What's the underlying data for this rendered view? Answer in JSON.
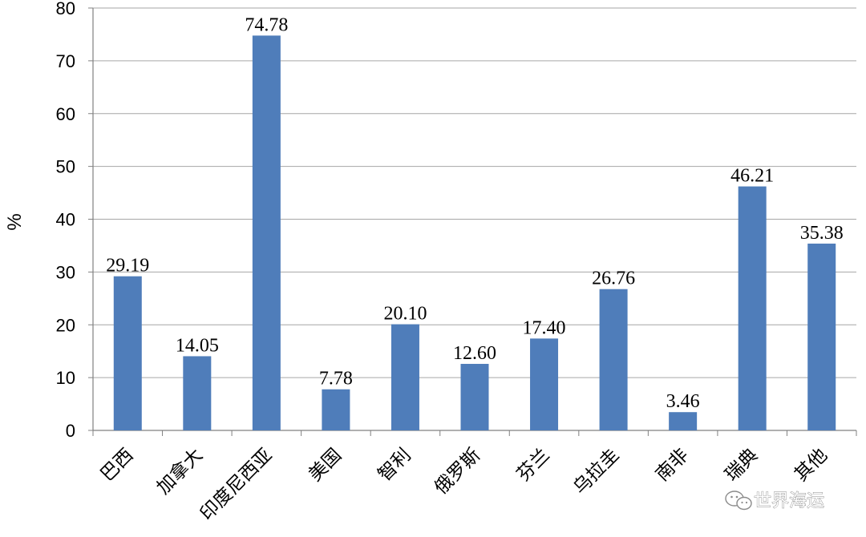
{
  "chart_data": {
    "type": "bar",
    "categories": [
      "巴西",
      "加拿大",
      "印度尼西亚",
      "美国",
      "智利",
      "俄罗斯",
      "芬兰",
      "乌拉圭",
      "南非",
      "瑞典",
      "其他"
    ],
    "values": [
      29.19,
      14.05,
      74.78,
      7.78,
      20.1,
      12.6,
      17.4,
      26.76,
      3.46,
      46.21,
      35.38
    ],
    "data_labels": [
      "29.19",
      "14.05",
      "74.78",
      "7.78",
      "20.10",
      "12.60",
      "17.40",
      "26.76",
      "3.46",
      "46.21",
      "35.38"
    ],
    "title": "",
    "xlabel": "",
    "ylabel": "%",
    "ylim": [
      0,
      80
    ],
    "yticks": [
      0,
      10,
      20,
      30,
      40,
      50,
      60,
      70,
      80
    ],
    "grid": true,
    "bar_color": "#4f7dba",
    "grid_color": "#a6a6a6",
    "legend": null
  },
  "watermark": {
    "text": "世界海运",
    "icon": "wechat-logo-icon"
  }
}
